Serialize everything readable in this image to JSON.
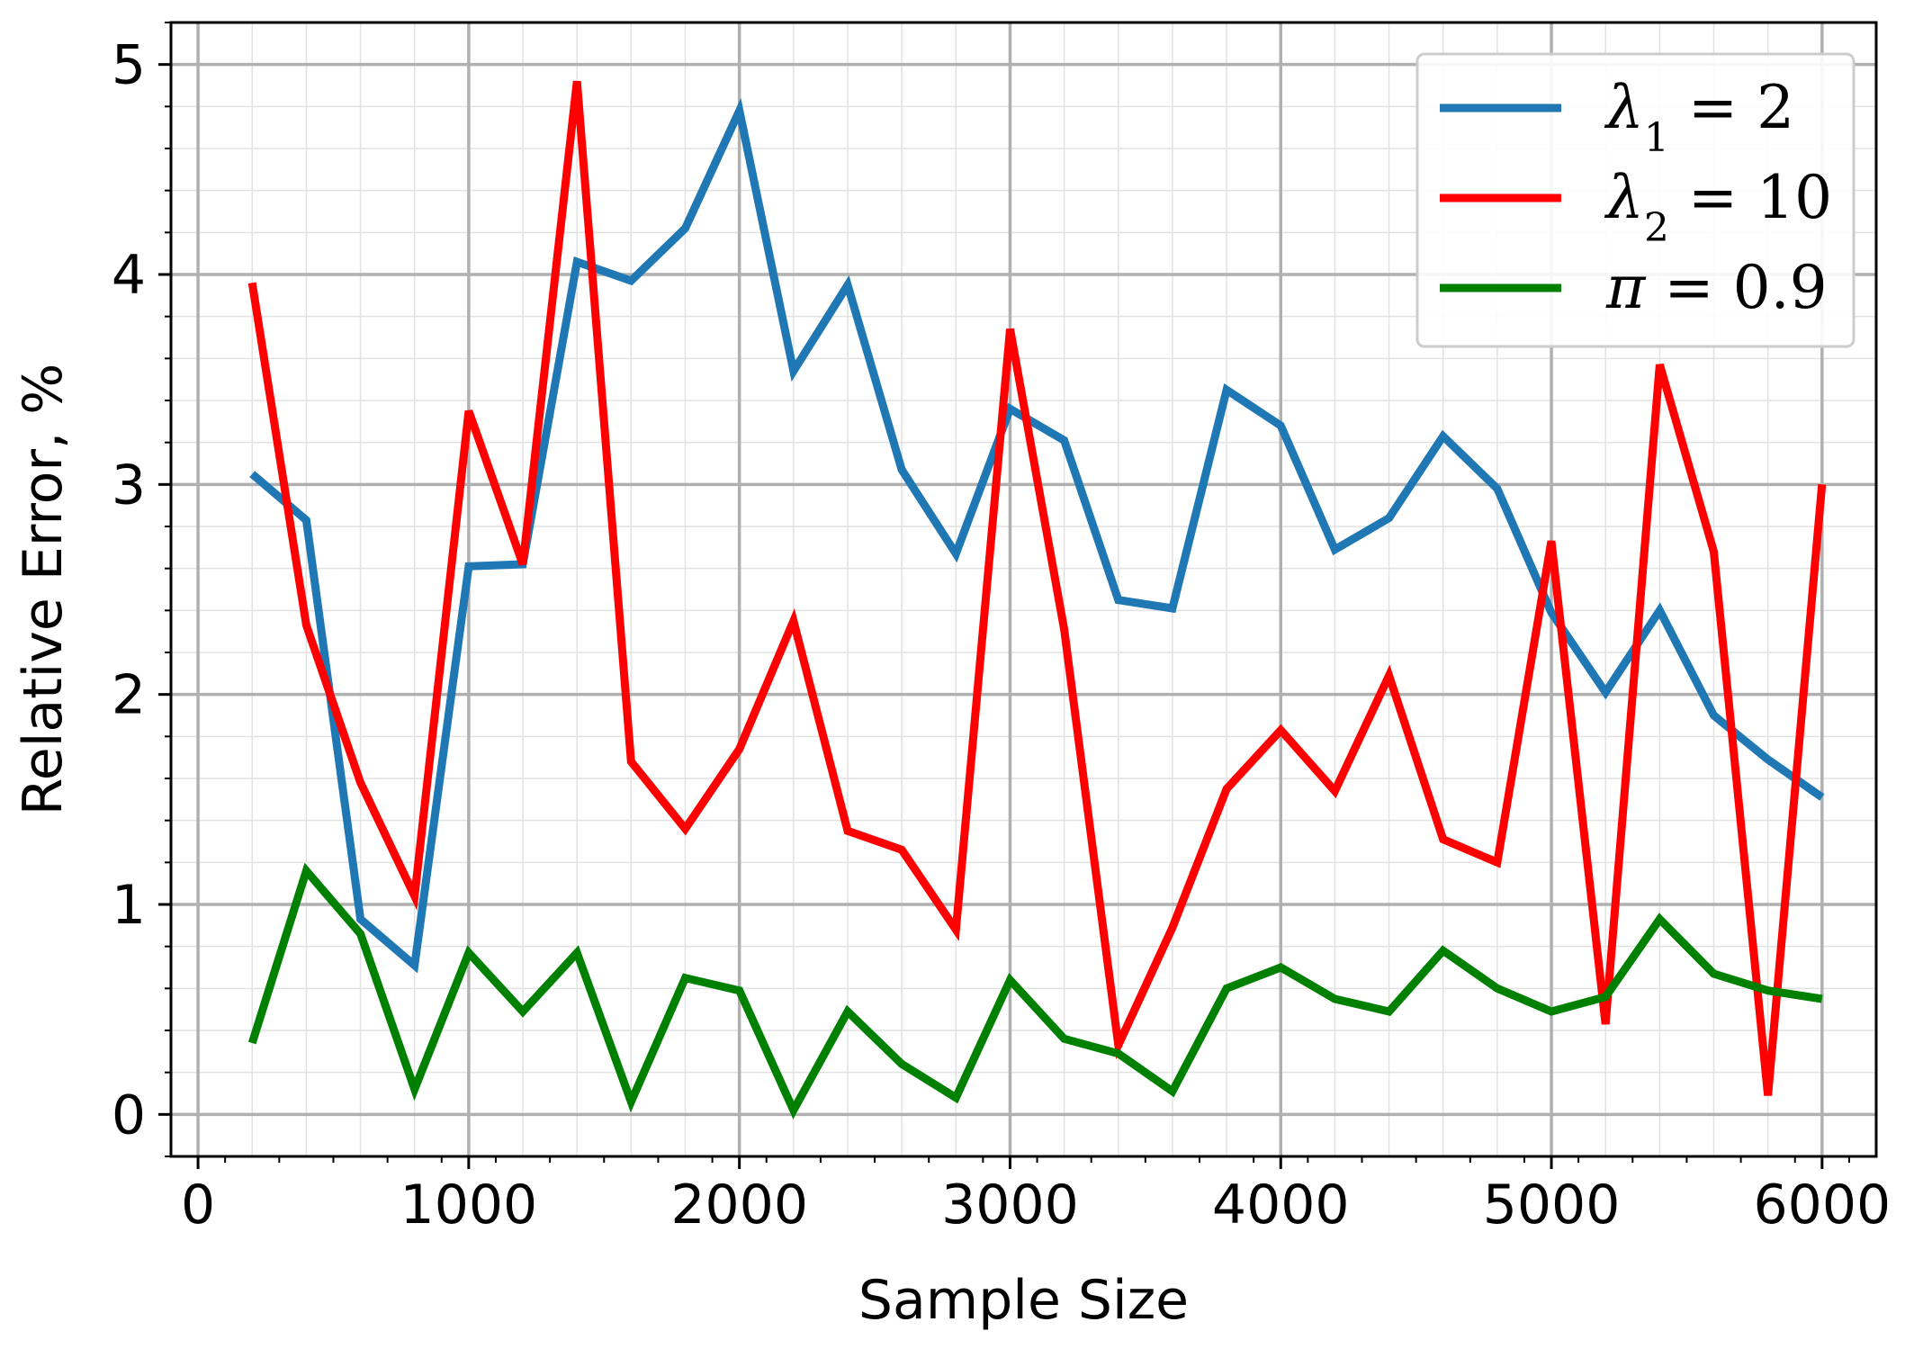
{
  "chart_data": {
    "type": "line",
    "xlabel": "Sample Size",
    "ylabel": "Relative Error, %",
    "xlim": [
      -100,
      6200
    ],
    "ylim": [
      -0.2,
      5.2
    ],
    "xticks": [
      0,
      1000,
      2000,
      3000,
      4000,
      5000,
      6000
    ],
    "yticks": [
      0,
      1,
      2,
      3,
      4,
      5
    ],
    "grid": true,
    "minor_grid": true,
    "legend_position": "top-right",
    "x": [
      200,
      400,
      600,
      800,
      1000,
      1200,
      1400,
      1600,
      1800,
      2000,
      2200,
      2400,
      2600,
      2800,
      3000,
      3200,
      3400,
      3600,
      3800,
      4000,
      4200,
      4400,
      4600,
      4800,
      5000,
      5200,
      5400,
      5600,
      5800,
      6000
    ],
    "series": [
      {
        "name": "λ1 = 2",
        "color": "#1f77b4",
        "values": [
          3.05,
          2.83,
          0.93,
          0.71,
          2.61,
          2.62,
          4.06,
          3.97,
          4.22,
          4.78,
          3.54,
          3.95,
          3.07,
          2.67,
          3.36,
          3.21,
          2.45,
          2.41,
          3.45,
          3.28,
          2.69,
          2.84,
          3.23,
          2.98,
          2.39,
          2.01,
          2.4,
          1.9,
          1.69,
          1.51
        ]
      },
      {
        "name": "λ2 = 10",
        "color": "#ff0000",
        "values": [
          3.96,
          2.33,
          1.58,
          1.04,
          3.35,
          2.62,
          4.92,
          1.68,
          1.36,
          1.74,
          2.35,
          1.35,
          1.26,
          0.88,
          3.74,
          2.31,
          0.33,
          0.89,
          1.55,
          1.83,
          1.54,
          2.09,
          1.31,
          1.2,
          2.73,
          0.43,
          3.57,
          2.68,
          0.09,
          3.0
        ]
      },
      {
        "name": "π = 0.9",
        "color": "#008000",
        "values": [
          0.34,
          1.16,
          0.86,
          0.12,
          0.77,
          0.49,
          0.77,
          0.06,
          0.65,
          0.59,
          0.02,
          0.49,
          0.24,
          0.08,
          0.64,
          0.36,
          0.29,
          0.11,
          0.6,
          0.7,
          0.55,
          0.49,
          0.78,
          0.6,
          0.49,
          0.56,
          0.93,
          0.67,
          0.59,
          0.55
        ]
      }
    ]
  },
  "legend": {
    "items": [
      {
        "label_main": "λ",
        "label_sub": "1",
        "label_rest": " = 2",
        "color": "#1f77b4"
      },
      {
        "label_main": "λ",
        "label_sub": "2",
        "label_rest": " = 10",
        "color": "#ff0000"
      },
      {
        "label_main": "π",
        "label_sub": "",
        "label_rest": " = 0.9",
        "color": "#008000"
      }
    ]
  }
}
